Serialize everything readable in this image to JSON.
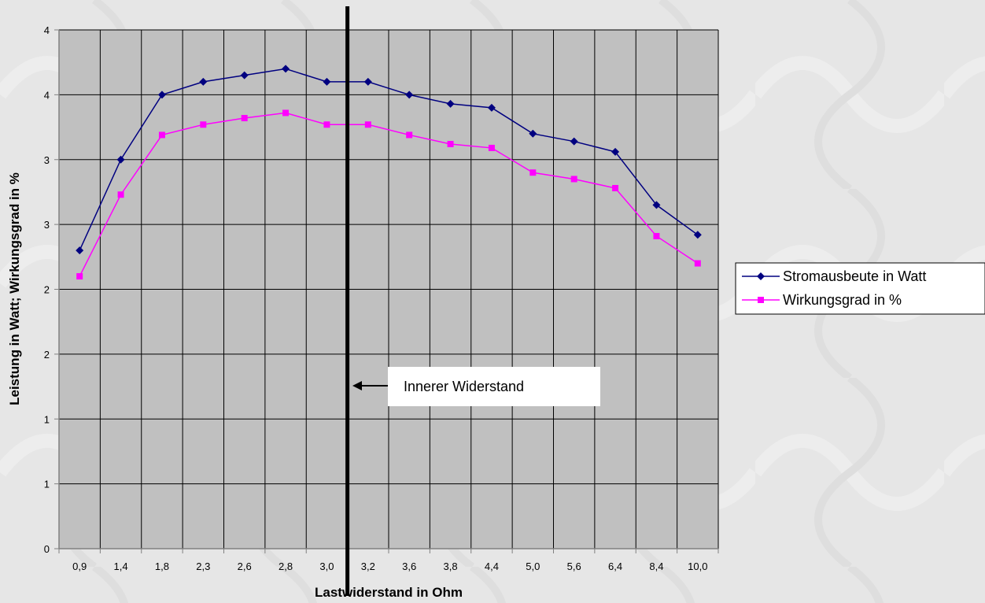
{
  "chart_data": {
    "type": "line",
    "title": "",
    "xlabel": "Lastwiderstand in Ohm",
    "ylabel": "Leistung in Watt; Wirkungsgrad in %",
    "categories": [
      "0,9",
      "1,4",
      "1,8",
      "2,3",
      "2,6",
      "2,8",
      "3,0",
      "3,2",
      "3,6",
      "3,8",
      "4,4",
      "5,0",
      "5,6",
      "6,4",
      "8,4",
      "10,0"
    ],
    "y_tick_labels": [
      "0",
      "1",
      "1",
      "2",
      "2",
      "3",
      "3",
      "4",
      "4"
    ],
    "ylim": [
      0,
      4
    ],
    "grid": true,
    "legend_position": "right",
    "series": [
      {
        "name": "Stromausbeute in Watt",
        "color": "#000080",
        "marker": "diamond",
        "values": [
          2.3,
          3.0,
          3.5,
          3.6,
          3.65,
          3.7,
          3.6,
          3.6,
          3.5,
          3.43,
          3.4,
          3.2,
          3.14,
          3.06,
          2.65,
          2.42
        ]
      },
      {
        "name": "Wirkungsgrad in %",
        "color": "#ff00ff",
        "marker": "square",
        "values": [
          2.1,
          2.73,
          3.19,
          3.27,
          3.32,
          3.36,
          3.27,
          3.27,
          3.19,
          3.12,
          3.09,
          2.9,
          2.85,
          2.78,
          2.41,
          2.2
        ]
      }
    ],
    "vertical_marker": {
      "between": [
        "3,0",
        "3,2"
      ]
    },
    "annotation": {
      "text": "Innerer Widerstand"
    }
  }
}
